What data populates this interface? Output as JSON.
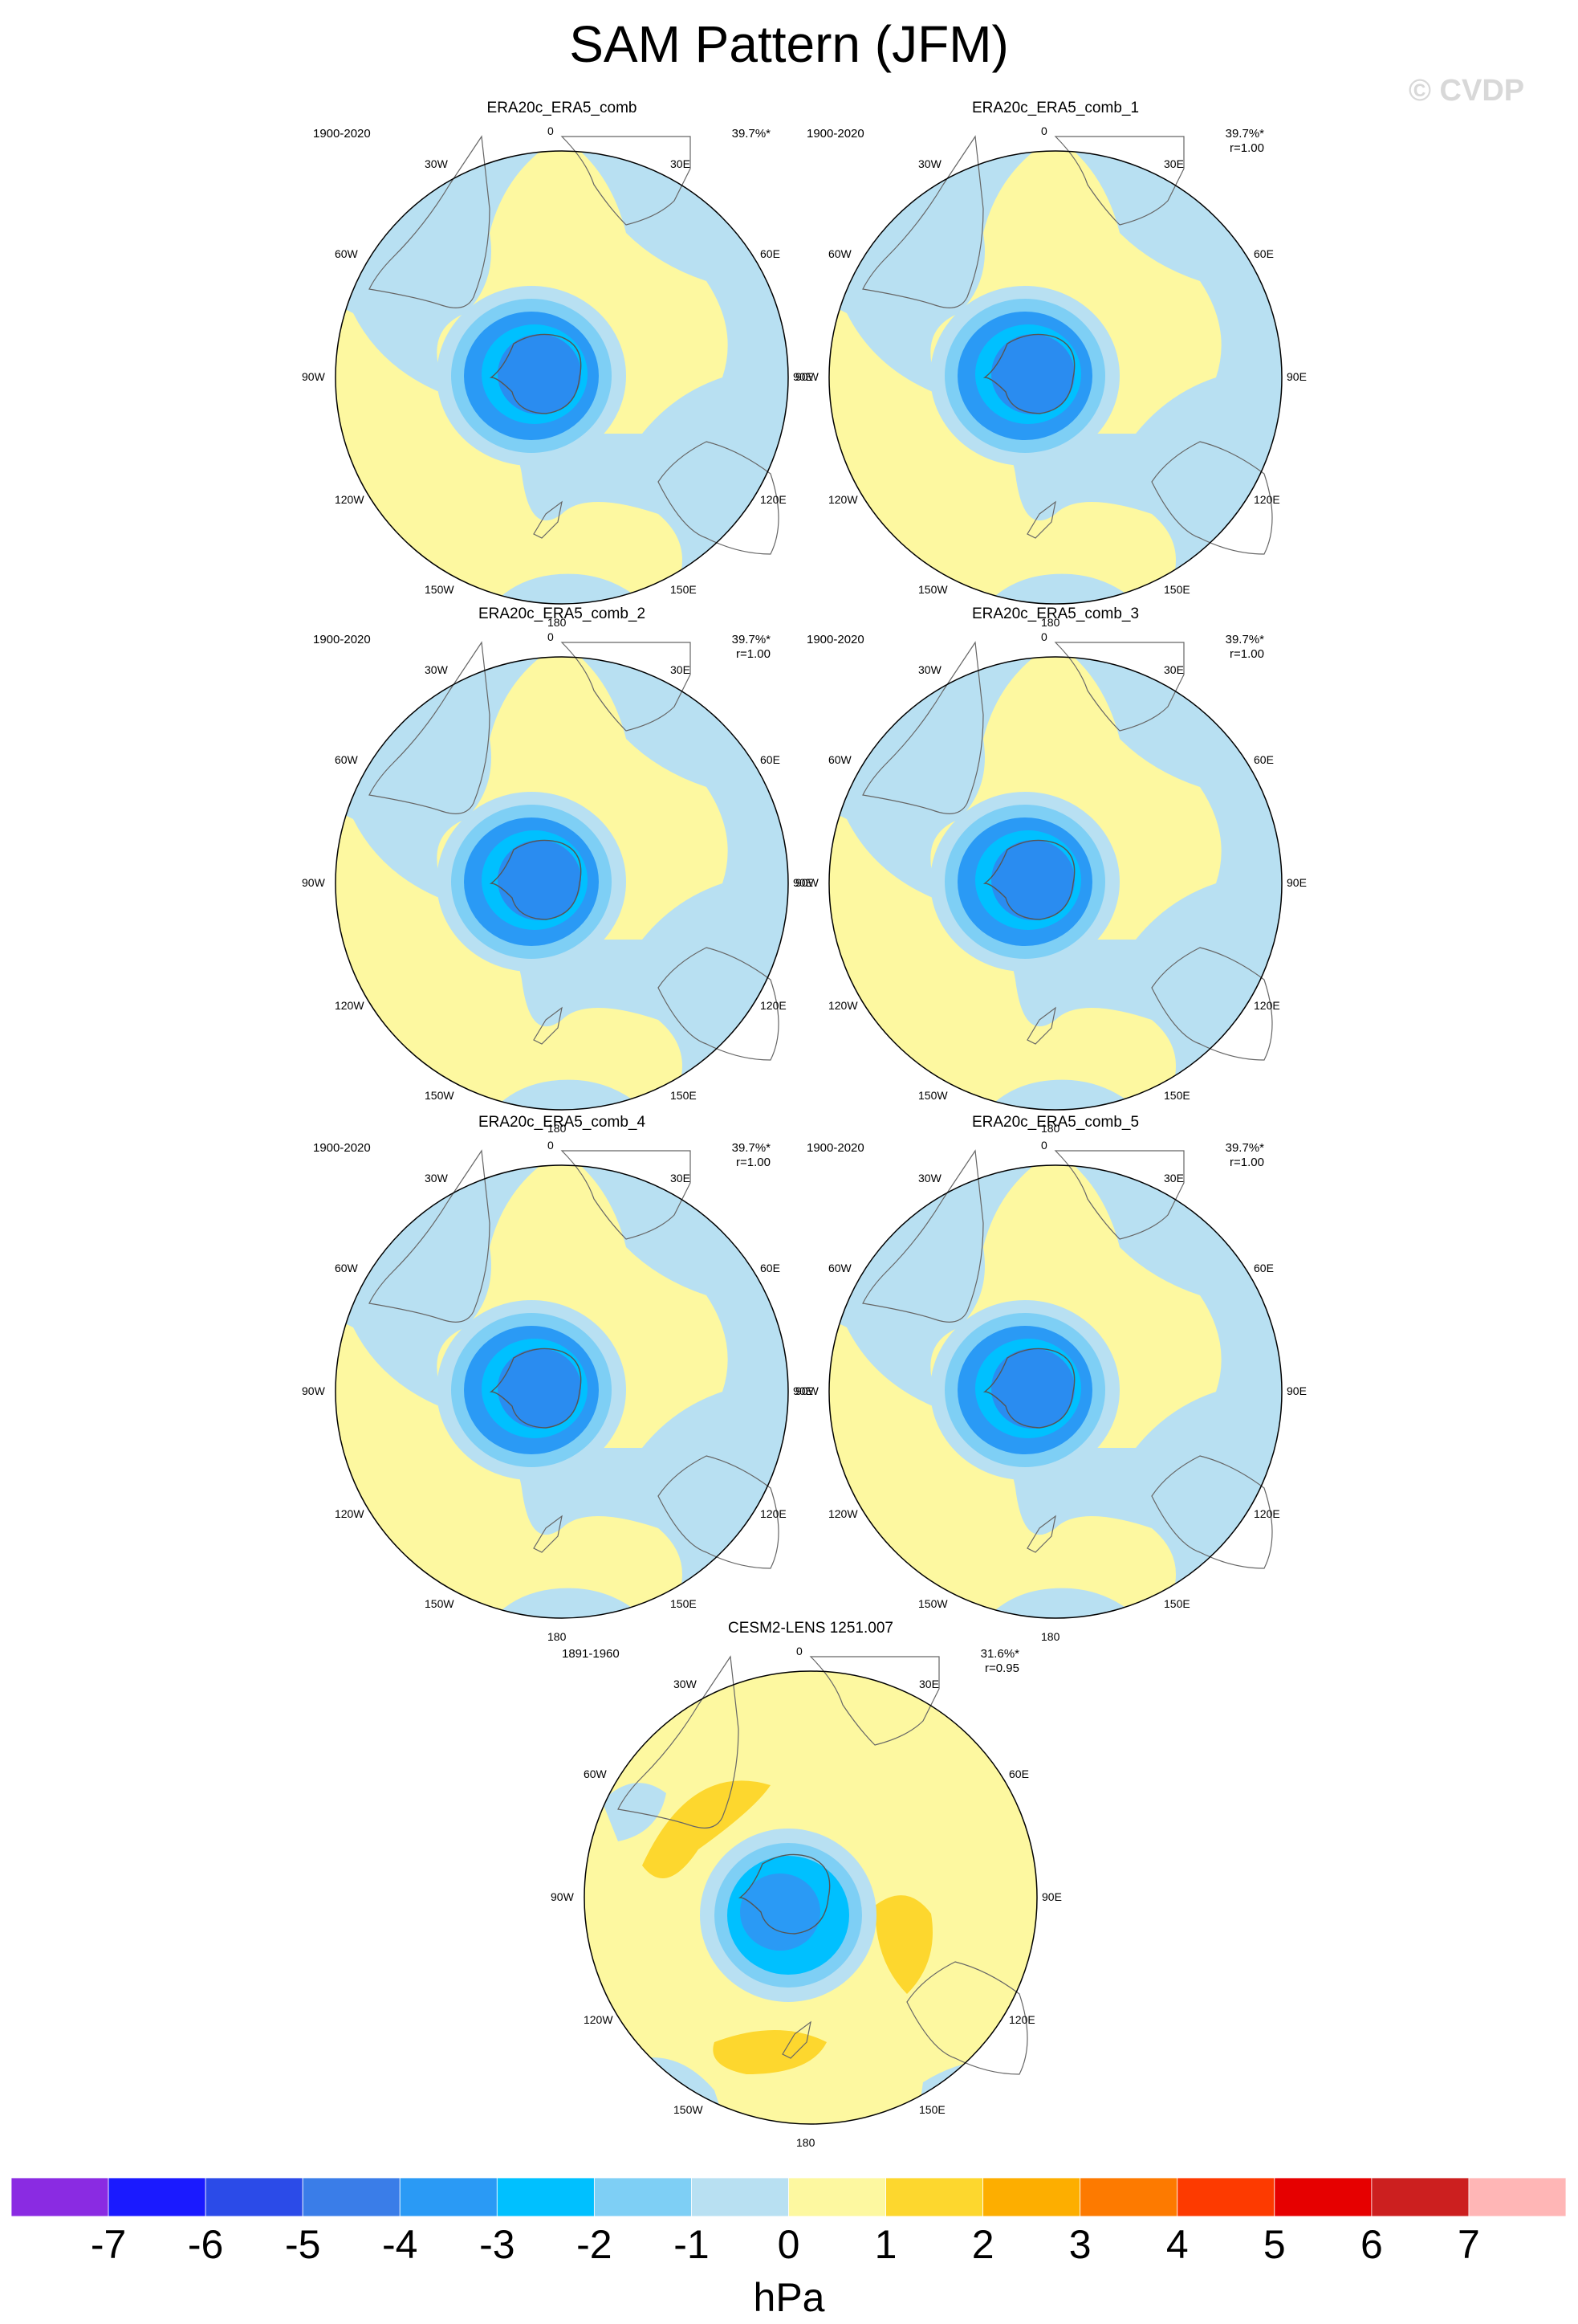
{
  "title": "SAM Pattern (JFM)",
  "watermark": "© CVDP",
  "panels": [
    {
      "title": "ERA20c_ERA5_comb",
      "period": "1900-2020",
      "pct": "39.7%*",
      "corr": "",
      "style": "obs"
    },
    {
      "title": "ERA20c_ERA5_comb_1",
      "period": "1900-2020",
      "pct": "39.7%*",
      "corr": "r=1.00",
      "style": "obs"
    },
    {
      "title": "ERA20c_ERA5_comb_2",
      "period": "1900-2020",
      "pct": "39.7%*",
      "corr": "r=1.00",
      "style": "obs"
    },
    {
      "title": "ERA20c_ERA5_comb_3",
      "period": "1900-2020",
      "pct": "39.7%*",
      "corr": "r=1.00",
      "style": "obs"
    },
    {
      "title": "ERA20c_ERA5_comb_4",
      "period": "1900-2020",
      "pct": "39.7%*",
      "corr": "r=1.00",
      "style": "obs"
    },
    {
      "title": "ERA20c_ERA5_comb_5",
      "period": "1900-2020",
      "pct": "39.7%*",
      "corr": "r=1.00",
      "style": "obs"
    },
    {
      "title": "CESM2-LENS 1251.007",
      "period": "1891-1960",
      "pct": "31.6%*",
      "corr": "r=0.95",
      "style": "model"
    }
  ],
  "lon_labels": {
    "top": "0",
    "bottom": "180",
    "w30": "30W",
    "w60": "60W",
    "w90": "90W",
    "w120": "120W",
    "w150": "150W",
    "e30": "30E",
    "e60": "60E",
    "e90": "90E",
    "e120": "120E",
    "e150": "150E"
  },
  "colorbar": {
    "colors": [
      "#8a2be2",
      "#1a1aff",
      "#2b4be8",
      "#3a7de8",
      "#2a9af5",
      "#00c0ff",
      "#7ecff5",
      "#b8e0f2",
      "#fdf8a0",
      "#fdd72e",
      "#fdae00",
      "#fd7a00",
      "#fd3a00",
      "#e60000",
      "#cc1f1f",
      "#ffb6b6"
    ],
    "ticks": [
      "-7",
      "-6",
      "-5",
      "-4",
      "-3",
      "-2",
      "-1",
      "0",
      "1",
      "2",
      "3",
      "4",
      "5",
      "6",
      "7"
    ],
    "unit": "hPa"
  }
}
